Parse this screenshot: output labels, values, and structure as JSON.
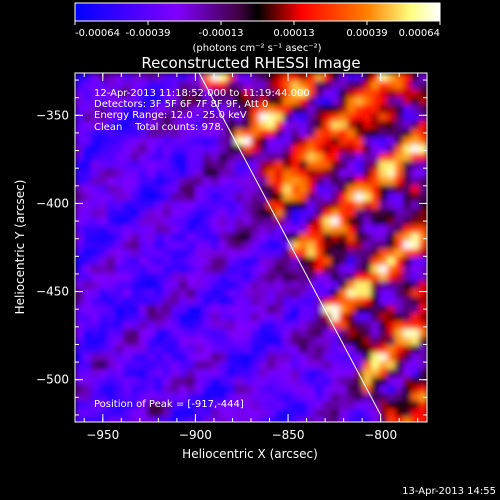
{
  "chart_data": {
    "type": "heatmap",
    "title": "Reconstructed RHESSI Image",
    "xlabel": "Heliocentric X (arcsec)",
    "ylabel": "Heliocentric Y (arcsec)",
    "xlim": [
      -965,
      -775
    ],
    "ylim": [
      -524,
      -326
    ],
    "x_ticks": [
      -950,
      -900,
      -850,
      -800
    ],
    "y_ticks": [
      -350,
      -400,
      -450,
      -500
    ],
    "colorbar": {
      "range": [
        -0.00064,
        0.00064
      ],
      "ticks": [
        "-0.00064",
        "-0.00039",
        "-0.00013",
        "0.00013",
        "0.00039",
        "0.00064"
      ],
      "unit_label": "(photons cm⁻² s⁻¹ asec⁻²)",
      "colors": [
        "#0000ff",
        "#8000ff",
        "#400040",
        "#000000",
        "#ff0000",
        "#ff8000",
        "#ffff80",
        "#ffffff"
      ]
    },
    "annotations": [
      "12-Apr-2013 11:18:52.000 to 11:19:44.000",
      "Detectors: 3F 5F 6F 7F 8F 9F, Att 0",
      "Energy Range: 12.0 - 25.0 keV",
      "Clean    Total counts: 978."
    ],
    "peak_label": "Position of Peak = [-917,-444]",
    "peak": [
      -917,
      -444
    ],
    "limb_line": {
      "from": [
        -898,
        -326
      ],
      "to": [
        -800,
        -520
      ]
    },
    "grid": false
  },
  "footer": {
    "timestamp": "13-Apr-2013 14:55"
  }
}
